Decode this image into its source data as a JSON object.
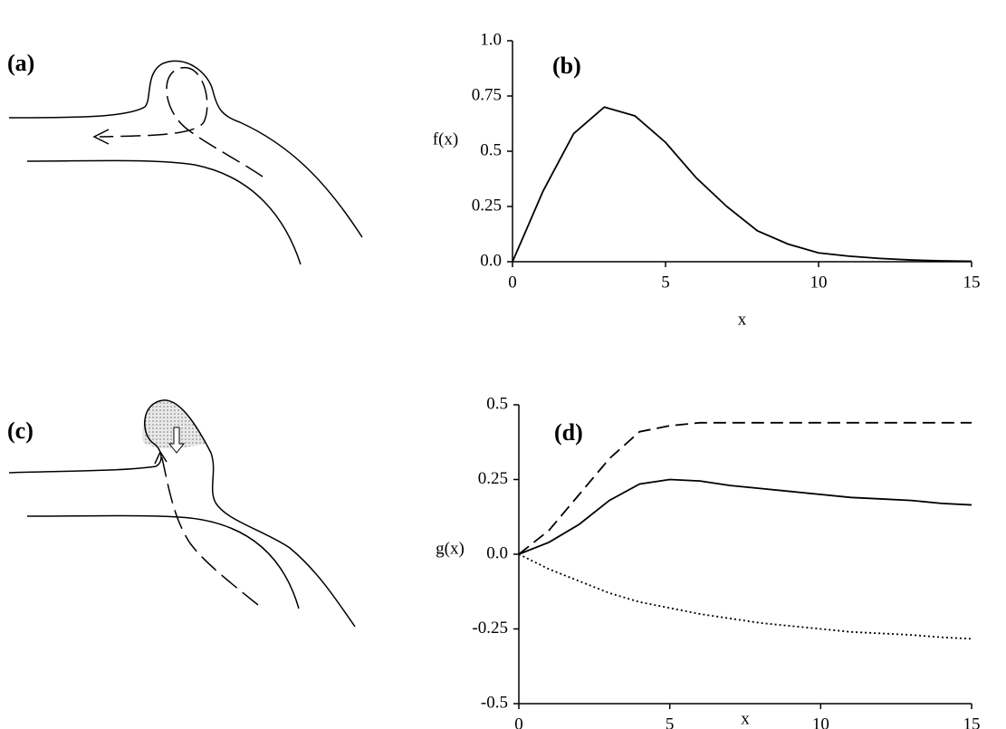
{
  "diagrams": [
    {
      "label": "(a)"
    },
    {
      "label": "(c)"
    }
  ],
  "chart_data": [
    {
      "type": "line",
      "annotation": "(b)",
      "x_label": "x",
      "y_label": "f(x)",
      "x": [
        0,
        1,
        2,
        3,
        4,
        5,
        6,
        7,
        8,
        9,
        10,
        11,
        12,
        13,
        14,
        15
      ],
      "series": [
        {
          "color": "#000000",
          "line_style": "solid",
          "values": [
            0,
            0.32,
            0.58,
            0.7,
            0.66,
            0.54,
            0.38,
            0.25,
            0.14,
            0.08,
            0.04,
            0.025,
            0.015,
            0.008,
            0.004,
            0.002
          ]
        }
      ],
      "xlim": [
        0,
        15
      ],
      "xticks": [
        0,
        5,
        10,
        15
      ],
      "ylim": [
        0,
        1
      ],
      "yticks": [
        {
          "value": 0,
          "label": "0.0"
        },
        0.25,
        0.5,
        0.75,
        {
          "value": 1,
          "label": "1.0"
        }
      ]
    },
    {
      "type": "line",
      "annotation": "(d)",
      "x_label": "x",
      "y_label": "g(x)",
      "x": [
        0,
        1,
        2,
        3,
        4,
        5,
        6,
        7,
        8,
        9,
        10,
        11,
        12,
        13,
        14,
        15
      ],
      "series": [
        {
          "color": "#000000",
          "line_style": "dashed",
          "values": [
            0,
            0.08,
            0.2,
            0.32,
            0.41,
            0.43,
            0.44,
            0.44,
            0.44,
            0.44,
            0.44,
            0.44,
            0.44,
            0.44,
            0.44,
            0.44
          ]
        },
        {
          "color": "#000000",
          "line_style": "solid",
          "values": [
            0,
            0.04,
            0.1,
            0.18,
            0.235,
            0.25,
            0.245,
            0.23,
            0.22,
            0.21,
            0.2,
            0.19,
            0.185,
            0.18,
            0.17,
            0.165
          ]
        },
        {
          "color": "#000000",
          "line_style": "dotted",
          "values": [
            0,
            -0.05,
            -0.09,
            -0.13,
            -0.16,
            -0.18,
            -0.2,
            -0.215,
            -0.23,
            -0.24,
            -0.25,
            -0.26,
            -0.265,
            -0.27,
            -0.278,
            -0.283
          ]
        }
      ],
      "xlim": [
        0,
        15
      ],
      "xticks": [
        0,
        5,
        10,
        15
      ],
      "ylim": [
        -0.5,
        0.5
      ],
      "yticks": [
        -0.5,
        -0.25,
        {
          "value": 0,
          "label": "0.0"
        },
        0.25,
        0.5
      ]
    }
  ]
}
